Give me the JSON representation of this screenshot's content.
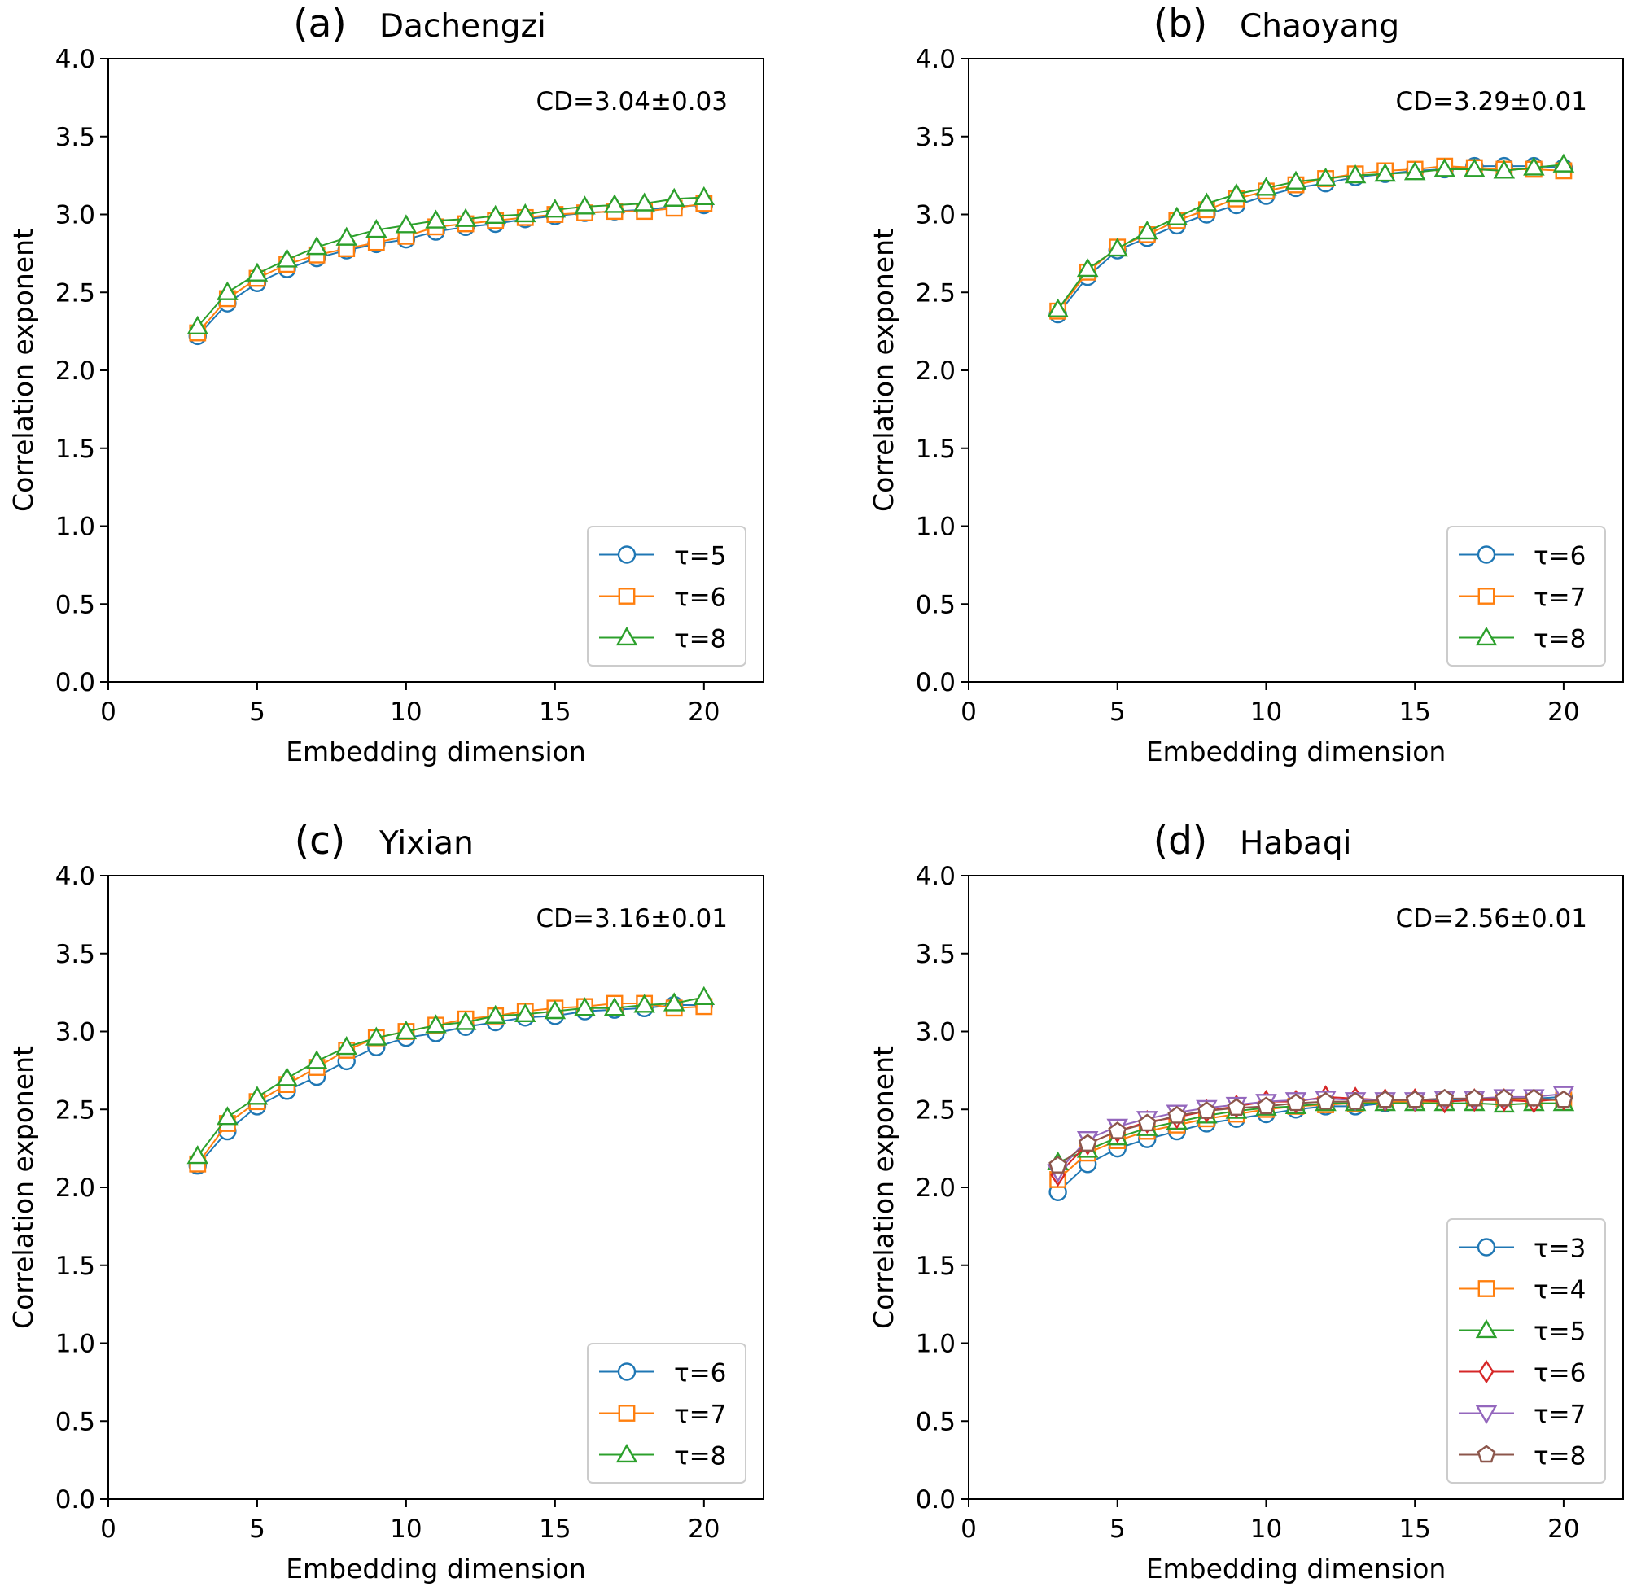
{
  "figure": {
    "tick_color": "#000000",
    "series_colors": [
      "#1f77b4",
      "#ff7f0e",
      "#2ca02c",
      "#d62728",
      "#9467bd",
      "#8c564b"
    ]
  },
  "chart_data": [
    {
      "type": "line",
      "panel_label": "(a)",
      "title": "Dachengzi",
      "annotation": "CD=3.04±0.03",
      "xlabel": "Embedding dimension",
      "ylabel": "Correlation exponent",
      "xlim": [
        0,
        22
      ],
      "ylim": [
        0,
        4
      ],
      "xticks": [
        0,
        5,
        10,
        15,
        20
      ],
      "yticks": [
        0.0,
        0.5,
        1.0,
        1.5,
        2.0,
        2.5,
        3.0,
        3.5,
        4.0
      ],
      "grid": false,
      "legend_position": "lower-right",
      "x": [
        3,
        4,
        5,
        6,
        7,
        8,
        9,
        10,
        11,
        12,
        13,
        14,
        15,
        16,
        17,
        18,
        19,
        20
      ],
      "series": [
        {
          "name": "τ=5",
          "marker": "circle",
          "color": "#1f77b4",
          "values": [
            2.22,
            2.43,
            2.56,
            2.65,
            2.72,
            2.77,
            2.81,
            2.84,
            2.89,
            2.92,
            2.94,
            2.97,
            2.99,
            3.01,
            3.02,
            3.03,
            3.05,
            3.06
          ]
        },
        {
          "name": "τ=6",
          "marker": "square",
          "color": "#ff7f0e",
          "values": [
            2.24,
            2.46,
            2.59,
            2.68,
            2.74,
            2.78,
            2.82,
            2.86,
            2.92,
            2.94,
            2.96,
            2.98,
            3.0,
            3.01,
            3.02,
            3.02,
            3.04,
            3.07
          ]
        },
        {
          "name": "τ=8",
          "marker": "triangle-up",
          "color": "#2ca02c",
          "values": [
            2.28,
            2.5,
            2.62,
            2.71,
            2.79,
            2.85,
            2.9,
            2.93,
            2.96,
            2.97,
            2.99,
            3.0,
            3.03,
            3.05,
            3.06,
            3.07,
            3.1,
            3.11
          ]
        }
      ]
    },
    {
      "type": "line",
      "panel_label": "(b)",
      "title": "Chaoyang",
      "annotation": "CD=3.29±0.01",
      "xlabel": "Embedding dimension",
      "ylabel": "Correlation exponent",
      "xlim": [
        0,
        22
      ],
      "ylim": [
        0,
        4
      ],
      "xticks": [
        0,
        5,
        10,
        15,
        20
      ],
      "yticks": [
        0.0,
        0.5,
        1.0,
        1.5,
        2.0,
        2.5,
        3.0,
        3.5,
        4.0
      ],
      "grid": false,
      "legend_position": "lower-right",
      "x": [
        3,
        4,
        5,
        6,
        7,
        8,
        9,
        10,
        11,
        12,
        13,
        14,
        15,
        16,
        17,
        18,
        19,
        20
      ],
      "series": [
        {
          "name": "τ=6",
          "marker": "circle",
          "color": "#1f77b4",
          "values": [
            2.36,
            2.6,
            2.77,
            2.85,
            2.93,
            3.0,
            3.06,
            3.12,
            3.17,
            3.2,
            3.24,
            3.26,
            3.28,
            3.29,
            3.31,
            3.31,
            3.31,
            3.3
          ]
        },
        {
          "name": "τ=7",
          "marker": "square",
          "color": "#ff7f0e",
          "values": [
            2.38,
            2.63,
            2.79,
            2.87,
            2.96,
            3.03,
            3.1,
            3.15,
            3.19,
            3.23,
            3.26,
            3.28,
            3.29,
            3.31,
            3.3,
            3.29,
            3.29,
            3.28
          ]
        },
        {
          "name": "τ=8",
          "marker": "triangle-up",
          "color": "#2ca02c",
          "values": [
            2.39,
            2.65,
            2.78,
            2.89,
            2.98,
            3.07,
            3.13,
            3.17,
            3.21,
            3.23,
            3.25,
            3.26,
            3.27,
            3.29,
            3.29,
            3.28,
            3.3,
            3.32
          ]
        }
      ]
    },
    {
      "type": "line",
      "panel_label": "(c)",
      "title": "Yixian",
      "annotation": "CD=3.16±0.01",
      "xlabel": "Embedding dimension",
      "ylabel": "Correlation exponent",
      "xlim": [
        0,
        22
      ],
      "ylim": [
        0,
        4
      ],
      "xticks": [
        0,
        5,
        10,
        15,
        20
      ],
      "yticks": [
        0.0,
        0.5,
        1.0,
        1.5,
        2.0,
        2.5,
        3.0,
        3.5,
        4.0
      ],
      "grid": false,
      "legend_position": "lower-right",
      "x": [
        3,
        4,
        5,
        6,
        7,
        8,
        9,
        10,
        11,
        12,
        13,
        14,
        15,
        16,
        17,
        18,
        19,
        20
      ],
      "series": [
        {
          "name": "τ=6",
          "marker": "circle",
          "color": "#1f77b4",
          "values": [
            2.14,
            2.36,
            2.52,
            2.62,
            2.71,
            2.81,
            2.9,
            2.96,
            2.99,
            3.03,
            3.06,
            3.09,
            3.1,
            3.13,
            3.14,
            3.15,
            3.17,
            3.17
          ]
        },
        {
          "name": "τ=7",
          "marker": "square",
          "color": "#ff7f0e",
          "values": [
            2.15,
            2.41,
            2.55,
            2.66,
            2.77,
            2.88,
            2.96,
            3.0,
            3.04,
            3.08,
            3.1,
            3.13,
            3.15,
            3.16,
            3.18,
            3.18,
            3.15,
            3.16
          ]
        },
        {
          "name": "τ=8",
          "marker": "triangle-up",
          "color": "#2ca02c",
          "values": [
            2.2,
            2.45,
            2.58,
            2.7,
            2.81,
            2.9,
            2.96,
            3.0,
            3.04,
            3.06,
            3.1,
            3.11,
            3.13,
            3.15,
            3.15,
            3.17,
            3.18,
            3.22
          ]
        }
      ]
    },
    {
      "type": "line",
      "panel_label": "(d)",
      "title": "Habaqi",
      "annotation": "CD=2.56±0.01",
      "xlabel": "Embedding dimension",
      "ylabel": "Correlation exponent",
      "xlim": [
        0,
        22
      ],
      "ylim": [
        0,
        4
      ],
      "xticks": [
        0,
        5,
        10,
        15,
        20
      ],
      "yticks": [
        0.0,
        0.5,
        1.0,
        1.5,
        2.0,
        2.5,
        3.0,
        3.5,
        4.0
      ],
      "grid": false,
      "legend_position": "lower-right",
      "x": [
        3,
        4,
        5,
        6,
        7,
        8,
        9,
        10,
        11,
        12,
        13,
        14,
        15,
        16,
        17,
        18,
        19,
        20
      ],
      "series": [
        {
          "name": "τ=3",
          "marker": "circle",
          "color": "#1f77b4",
          "values": [
            1.97,
            2.15,
            2.25,
            2.31,
            2.36,
            2.41,
            2.44,
            2.47,
            2.5,
            2.52,
            2.52,
            2.54,
            2.55,
            2.56,
            2.56,
            2.56,
            2.57,
            2.58
          ]
        },
        {
          "name": "τ=4",
          "marker": "square",
          "color": "#ff7f0e",
          "values": [
            2.05,
            2.22,
            2.3,
            2.36,
            2.4,
            2.44,
            2.47,
            2.5,
            2.52,
            2.53,
            2.54,
            2.55,
            2.55,
            2.55,
            2.56,
            2.57,
            2.56,
            2.56
          ]
        },
        {
          "name": "τ=5",
          "marker": "triangle-up",
          "color": "#2ca02c",
          "values": [
            2.16,
            2.24,
            2.32,
            2.38,
            2.42,
            2.46,
            2.49,
            2.51,
            2.52,
            2.54,
            2.54,
            2.54,
            2.54,
            2.54,
            2.54,
            2.53,
            2.54,
            2.54
          ]
        },
        {
          "name": "τ=6",
          "marker": "diamond",
          "color": "#d62728",
          "values": [
            2.08,
            2.28,
            2.36,
            2.42,
            2.45,
            2.49,
            2.52,
            2.55,
            2.55,
            2.58,
            2.57,
            2.56,
            2.56,
            2.55,
            2.56,
            2.56,
            2.55,
            2.57
          ]
        },
        {
          "name": "τ=7",
          "marker": "triangle-down",
          "color": "#9467bd",
          "values": [
            2.1,
            2.31,
            2.39,
            2.44,
            2.48,
            2.51,
            2.53,
            2.55,
            2.56,
            2.57,
            2.56,
            2.56,
            2.56,
            2.57,
            2.57,
            2.58,
            2.58,
            2.6
          ]
        },
        {
          "name": "τ=8",
          "marker": "pentagon",
          "color": "#8c564b",
          "values": [
            2.14,
            2.28,
            2.36,
            2.41,
            2.46,
            2.49,
            2.51,
            2.52,
            2.54,
            2.55,
            2.55,
            2.56,
            2.56,
            2.57,
            2.57,
            2.57,
            2.57,
            2.56
          ]
        }
      ]
    }
  ]
}
